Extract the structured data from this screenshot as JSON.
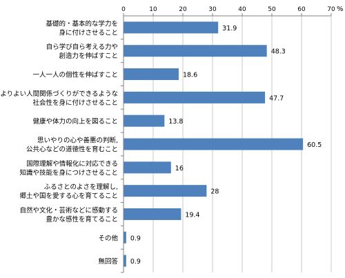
{
  "chart_data": {
    "type": "bar",
    "orientation": "horizontal",
    "categories": [
      [
        "基礎的・基本的な学力を",
        "身に付けさせること"
      ],
      [
        "自ら学び自ら考える力や",
        "創造力を伸ばすこと"
      ],
      [
        "一人一人の個性を伸ばすこと"
      ],
      [
        "よりよい人間関係づくりができるような",
        "社会性を身に付けさせること"
      ],
      [
        "健康や体力の向上を図ること"
      ],
      [
        "思いやりの心や善悪の判断,",
        "公共心などの道徳性を育むこと"
      ],
      [
        "国際理解や情報化に対応できる",
        "知識や技能を身につけさせること"
      ],
      [
        "ふるさとのよさを理解し,",
        "郷土や国を愛する心を育てること"
      ],
      [
        "自然や文化・芸術などに感動する",
        "豊かな感性を育てること"
      ],
      [
        "その他"
      ],
      [
        "無回答"
      ]
    ],
    "values": [
      31.9,
      48.3,
      18.6,
      47.7,
      13.8,
      60.5,
      16,
      28,
      19.4,
      0.9,
      0.9
    ],
    "value_labels": [
      "31.9",
      "48.3",
      "18.6",
      "47.7",
      "13.8",
      "60.5",
      "16",
      "28",
      "19.4",
      "0.9",
      "0.9"
    ],
    "xlim": [
      0,
      70
    ],
    "xticks": [
      0,
      10,
      20,
      30,
      40,
      50,
      60,
      70
    ],
    "unit_label": "%",
    "bar_color": "#4f81bd",
    "grid": true,
    "axis_position": "top"
  }
}
